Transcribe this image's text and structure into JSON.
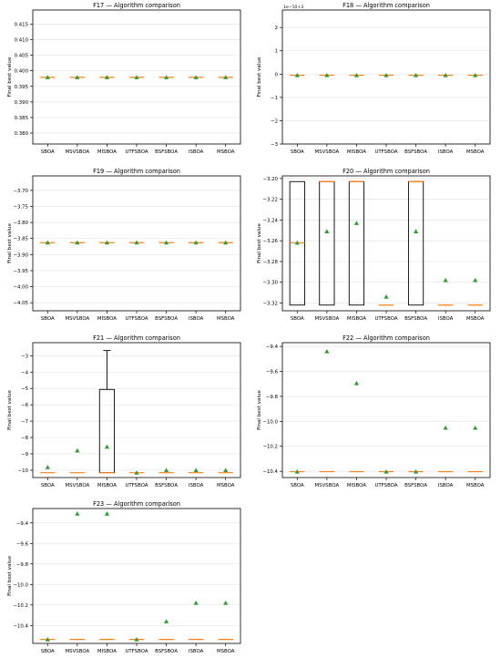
{
  "chart_data": [
    {
      "type": "box",
      "title": "F17 — Algorithm comparison",
      "ylabel": "Final best value",
      "offset_text": "",
      "categories": [
        "SBOA",
        "MSVSBOA",
        "MISBOA",
        "UTFSBOA",
        "BSFSBOA",
        "ISBOA",
        "MSBOA"
      ],
      "yticks": [
        0.38,
        0.385,
        0.39,
        0.395,
        0.4,
        0.405,
        0.41,
        0.415
      ],
      "ytick_labels": [
        "0.380",
        "0.385",
        "0.390",
        "0.395",
        "0.400",
        "0.405",
        "0.410",
        "0.415"
      ],
      "ylim": [
        0.3765,
        0.4195
      ],
      "grid": "horizontal",
      "series": [
        {
          "q1": 0.3979,
          "q3": 0.3979,
          "median": 0.3979,
          "whisker_low": 0.3979,
          "whisker_high": 0.3979,
          "mean": 0.3979
        },
        {
          "q1": 0.3979,
          "q3": 0.3979,
          "median": 0.3979,
          "whisker_low": 0.3979,
          "whisker_high": 0.3979,
          "mean": 0.3979
        },
        {
          "q1": 0.3979,
          "q3": 0.3979,
          "median": 0.3979,
          "whisker_low": 0.3979,
          "whisker_high": 0.3979,
          "mean": 0.3979
        },
        {
          "q1": 0.3979,
          "q3": 0.3979,
          "median": 0.3979,
          "whisker_low": 0.3979,
          "whisker_high": 0.3979,
          "mean": 0.3979
        },
        {
          "q1": 0.3979,
          "q3": 0.3979,
          "median": 0.3979,
          "whisker_low": 0.3979,
          "whisker_high": 0.3979,
          "mean": 0.3979
        },
        {
          "q1": 0.3979,
          "q3": 0.3979,
          "median": 0.3979,
          "whisker_low": 0.3979,
          "whisker_high": 0.3979,
          "mean": 0.3979
        },
        {
          "q1": 0.3979,
          "q3": 0.3979,
          "median": 0.3979,
          "whisker_low": 0.3979,
          "whisker_high": 0.3979,
          "mean": 0.3979
        }
      ]
    },
    {
      "type": "box",
      "title": "F18 — Algorithm comparison",
      "ylabel": "Final best value",
      "offset_text": "1e−10+3",
      "categories": [
        "SBOA",
        "MSVSBOA",
        "MISBOA",
        "UTFSBOA",
        "BSFSBOA",
        "ISBOA",
        "MSBOA"
      ],
      "yticks": [
        -3,
        -2,
        -1,
        0,
        1,
        2
      ],
      "ytick_labels": [
        "−3",
        "−2",
        "−1",
        "0",
        "1",
        "2"
      ],
      "ylim": [
        -3,
        2.75
      ],
      "grid": "horizontal",
      "series": [
        {
          "q1": -0.05,
          "q3": -0.05,
          "median": -0.05,
          "whisker_low": -0.05,
          "whisker_high": -0.05,
          "mean": -0.05
        },
        {
          "q1": -0.05,
          "q3": -0.05,
          "median": -0.05,
          "whisker_low": -0.05,
          "whisker_high": -0.05,
          "mean": -0.05
        },
        {
          "q1": -0.05,
          "q3": -0.05,
          "median": -0.05,
          "whisker_low": -0.05,
          "whisker_high": -0.05,
          "mean": -0.05
        },
        {
          "q1": -0.05,
          "q3": -0.05,
          "median": -0.05,
          "whisker_low": -0.05,
          "whisker_high": -0.05,
          "mean": -0.05
        },
        {
          "q1": -0.05,
          "q3": -0.05,
          "median": -0.05,
          "whisker_low": -0.05,
          "whisker_high": -0.05,
          "mean": -0.05
        },
        {
          "q1": -0.05,
          "q3": -0.05,
          "median": -0.05,
          "whisker_low": -0.05,
          "whisker_high": -0.05,
          "mean": -0.05
        },
        {
          "q1": -0.05,
          "q3": -0.05,
          "median": -0.05,
          "whisker_low": -0.05,
          "whisker_high": -0.05,
          "mean": -0.05
        }
      ]
    },
    {
      "type": "box",
      "title": "F19 — Algorithm comparison",
      "ylabel": "Final best value",
      "offset_text": "",
      "categories": [
        "SBOA",
        "MSVSBOA",
        "MISBOA",
        "UTFSBOA",
        "BSFSBOA",
        "ISBOA",
        "MSBOA"
      ],
      "yticks": [
        -4.05,
        -4.0,
        -3.95,
        -3.9,
        -3.85,
        -3.8,
        -3.75,
        -3.7
      ],
      "ytick_labels": [
        "−4.05",
        "−4.00",
        "−3.95",
        "−3.90",
        "−3.85",
        "−3.80",
        "−3.75",
        "−3.70"
      ],
      "ylim": [
        -4.075,
        -3.655
      ],
      "grid": "horizontal",
      "series": [
        {
          "q1": -3.8628,
          "q3": -3.8628,
          "median": -3.8628,
          "whisker_low": -3.8628,
          "whisker_high": -3.8628,
          "mean": -3.8628
        },
        {
          "q1": -3.8628,
          "q3": -3.8628,
          "median": -3.8628,
          "whisker_low": -3.8628,
          "whisker_high": -3.8628,
          "mean": -3.8628
        },
        {
          "q1": -3.8628,
          "q3": -3.8628,
          "median": -3.8628,
          "whisker_low": -3.8628,
          "whisker_high": -3.8628,
          "mean": -3.8628
        },
        {
          "q1": -3.8628,
          "q3": -3.8628,
          "median": -3.8628,
          "whisker_low": -3.8628,
          "whisker_high": -3.8628,
          "mean": -3.8628
        },
        {
          "q1": -3.8628,
          "q3": -3.8628,
          "median": -3.8628,
          "whisker_low": -3.8628,
          "whisker_high": -3.8628,
          "mean": -3.8628
        },
        {
          "q1": -3.8628,
          "q3": -3.8628,
          "median": -3.8628,
          "whisker_low": -3.8628,
          "whisker_high": -3.8628,
          "mean": -3.8628
        },
        {
          "q1": -3.8628,
          "q3": -3.8628,
          "median": -3.8628,
          "whisker_low": -3.8628,
          "whisker_high": -3.8628,
          "mean": -3.8628
        }
      ]
    },
    {
      "type": "box",
      "title": "F20 — Algorithm comparison",
      "ylabel": "Final best value",
      "offset_text": "",
      "categories": [
        "SBOA",
        "MSVSBOA",
        "MISBOA",
        "UTFSBOA",
        "BSFSBOA",
        "ISBOA",
        "MSBOA"
      ],
      "yticks": [
        -3.32,
        -3.3,
        -3.28,
        -3.26,
        -3.24,
        -3.22,
        -3.2
      ],
      "ytick_labels": [
        "−3.32",
        "−3.30",
        "−3.28",
        "−3.26",
        "−3.24",
        "−3.22",
        "−3.20"
      ],
      "ylim": [
        -3.3275,
        -3.1975
      ],
      "grid": "horizontal",
      "series": [
        {
          "q1": -3.322,
          "q3": -3.203,
          "median": -3.262,
          "whisker_low": -3.322,
          "whisker_high": -3.203,
          "mean": -3.262
        },
        {
          "q1": -3.322,
          "q3": -3.203,
          "median": -3.203,
          "whisker_low": -3.322,
          "whisker_high": -3.203,
          "mean": -3.251
        },
        {
          "q1": -3.322,
          "q3": -3.203,
          "median": -3.203,
          "whisker_low": -3.322,
          "whisker_high": -3.203,
          "mean": -3.243
        },
        {
          "q1": -3.322,
          "q3": -3.322,
          "median": -3.322,
          "whisker_low": -3.322,
          "whisker_high": -3.322,
          "mean": -3.314
        },
        {
          "q1": -3.322,
          "q3": -3.203,
          "median": -3.203,
          "whisker_low": -3.322,
          "whisker_high": -3.203,
          "mean": -3.251
        },
        {
          "q1": -3.322,
          "q3": -3.322,
          "median": -3.322,
          "whisker_low": -3.322,
          "whisker_high": -3.322,
          "mean": -3.298
        },
        {
          "q1": -3.322,
          "q3": -3.322,
          "median": -3.322,
          "whisker_low": -3.322,
          "whisker_high": -3.322,
          "mean": -3.298
        }
      ]
    },
    {
      "type": "box",
      "title": "F21 — Algorithm comparison",
      "ylabel": "Final best value",
      "offset_text": "",
      "categories": [
        "SBOA",
        "MSVSBOA",
        "MISBOA",
        "UTFSBOA",
        "BSFSBOA",
        "ISBOA",
        "MSBOA"
      ],
      "yticks": [
        -10,
        -9,
        -8,
        -7,
        -6,
        -5,
        -4,
        -3
      ],
      "ytick_labels": [
        "−10",
        "−9",
        "−8",
        "−7",
        "−6",
        "−5",
        "−4",
        "−3"
      ],
      "ylim": [
        -10.45,
        -2.2
      ],
      "grid": "horizontal",
      "series": [
        {
          "q1": -10.153,
          "q3": -10.153,
          "median": -10.153,
          "whisker_low": -10.153,
          "whisker_high": -10.153,
          "mean": -9.82
        },
        {
          "q1": -10.153,
          "q3": -10.153,
          "median": -10.153,
          "whisker_low": -10.153,
          "whisker_high": -10.153,
          "mean": -8.8
        },
        {
          "q1": -10.153,
          "q3": -5.06,
          "median": -10.153,
          "whisker_low": -10.153,
          "whisker_high": -2.68,
          "mean": -8.57
        },
        {
          "q1": -10.153,
          "q3": -10.153,
          "median": -10.153,
          "whisker_low": -10.153,
          "whisker_high": -10.153,
          "mean": -10.153
        },
        {
          "q1": -10.153,
          "q3": -10.153,
          "median": -10.153,
          "whisker_low": -10.153,
          "whisker_high": -10.153,
          "mean": -10.0
        },
        {
          "q1": -10.153,
          "q3": -10.153,
          "median": -10.153,
          "whisker_low": -10.153,
          "whisker_high": -10.153,
          "mean": -10.0
        },
        {
          "q1": -10.153,
          "q3": -10.153,
          "median": -10.153,
          "whisker_low": -10.153,
          "whisker_high": -10.153,
          "mean": -10.0
        }
      ]
    },
    {
      "type": "box",
      "title": "F22 — Algorithm comparison",
      "ylabel": "Final best value",
      "offset_text": "",
      "categories": [
        "SBOA",
        "MSVSBOA",
        "MISBOA",
        "UTFSBOA",
        "BSFSBOA",
        "ISBOA",
        "MSBOA"
      ],
      "yticks": [
        -10.4,
        -10.2,
        -10.0,
        -9.8,
        -9.6,
        -9.4
      ],
      "ytick_labels": [
        "−10.4",
        "−10.2",
        "−10.0",
        "−9.8",
        "−9.6",
        "−9.4"
      ],
      "ylim": [
        -10.45,
        -9.37
      ],
      "grid": "horizontal",
      "series": [
        {
          "q1": -10.403,
          "q3": -10.403,
          "median": -10.403,
          "whisker_low": -10.403,
          "whisker_high": -10.403,
          "mean": -10.403
        },
        {
          "q1": -10.403,
          "q3": -10.403,
          "median": -10.403,
          "whisker_low": -10.403,
          "whisker_high": -10.403,
          "mean": -9.44
        },
        {
          "q1": -10.403,
          "q3": -10.403,
          "median": -10.403,
          "whisker_low": -10.403,
          "whisker_high": -10.403,
          "mean": -9.695
        },
        {
          "q1": -10.403,
          "q3": -10.403,
          "median": -10.403,
          "whisker_low": -10.403,
          "whisker_high": -10.403,
          "mean": -10.403
        },
        {
          "q1": -10.403,
          "q3": -10.403,
          "median": -10.403,
          "whisker_low": -10.403,
          "whisker_high": -10.403,
          "mean": -10.403
        },
        {
          "q1": -10.403,
          "q3": -10.403,
          "median": -10.403,
          "whisker_low": -10.403,
          "whisker_high": -10.403,
          "mean": -10.052
        },
        {
          "q1": -10.403,
          "q3": -10.403,
          "median": -10.403,
          "whisker_low": -10.403,
          "whisker_high": -10.403,
          "mean": -10.052
        }
      ]
    },
    {
      "type": "box",
      "title": "F23 — Algorithm comparison",
      "ylabel": "Final best value",
      "offset_text": "",
      "categories": [
        "SBOA",
        "MSVSBOA",
        "MISBOA",
        "UTFSBOA",
        "BSFSBOA",
        "ISBOA",
        "MSBOA"
      ],
      "yticks": [
        -10.4,
        -10.2,
        -10.0,
        -9.8,
        -9.6,
        -9.4
      ],
      "ytick_labels": [
        "−10.4",
        "−10.2",
        "−10.0",
        "−9.8",
        "−9.6",
        "−9.4"
      ],
      "ylim": [
        -10.575,
        -9.26
      ],
      "grid": "horizontal",
      "series": [
        {
          "q1": -10.536,
          "q3": -10.536,
          "median": -10.536,
          "whisker_low": -10.536,
          "whisker_high": -10.536,
          "mean": -10.536
        },
        {
          "q1": -10.536,
          "q3": -10.536,
          "median": -10.536,
          "whisker_low": -10.536,
          "whisker_high": -10.536,
          "mean": -9.31
        },
        {
          "q1": -10.536,
          "q3": -10.536,
          "median": -10.536,
          "whisker_low": -10.536,
          "whisker_high": -10.536,
          "mean": -9.31
        },
        {
          "q1": -10.536,
          "q3": -10.536,
          "median": -10.536,
          "whisker_low": -10.536,
          "whisker_high": -10.536,
          "mean": -10.536
        },
        {
          "q1": -10.536,
          "q3": -10.536,
          "median": -10.536,
          "whisker_low": -10.536,
          "whisker_high": -10.536,
          "mean": -10.36
        },
        {
          "q1": -10.536,
          "q3": -10.536,
          "median": -10.536,
          "whisker_low": -10.536,
          "whisker_high": -10.536,
          "mean": -10.18
        },
        {
          "q1": -10.536,
          "q3": -10.536,
          "median": -10.536,
          "whisker_low": -10.536,
          "whisker_high": -10.536,
          "mean": -10.18
        }
      ]
    }
  ],
  "colors": {
    "median": "#ff7f0e",
    "mean_marker": "#2ca02c",
    "box": "#000000",
    "grid": "#e6e6e6"
  }
}
